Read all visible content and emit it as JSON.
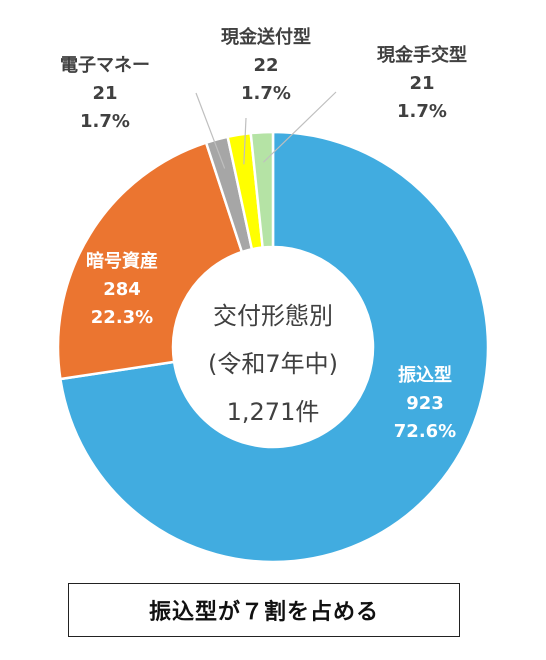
{
  "chart_data": {
    "type": "pie",
    "donut": true,
    "center_text": [
      "交付形態別",
      "(令和7年中)",
      "1,271件"
    ],
    "slices": [
      {
        "name": "振込型",
        "value": 923,
        "percent": "72.6%",
        "color": "#41ACE0",
        "text_color": "#ffffff"
      },
      {
        "name": "暗号資産",
        "value": 284,
        "percent": "22.3%",
        "color": "#EB7530",
        "text_color": "#ffffff"
      },
      {
        "name": "電子マネー",
        "value": 21,
        "percent": "1.7%",
        "color": "#A6A6A6",
        "text_color": "#404040"
      },
      {
        "name": "現金送付型",
        "value": 22,
        "percent": "1.7%",
        "color": "#FFFF00",
        "text_color": "#404040"
      },
      {
        "name": "現金手交型",
        "value": 21,
        "percent": "1.7%",
        "color": "#B5E3A5",
        "text_color": "#404040"
      }
    ]
  },
  "callout": "振込型が７割を占める"
}
